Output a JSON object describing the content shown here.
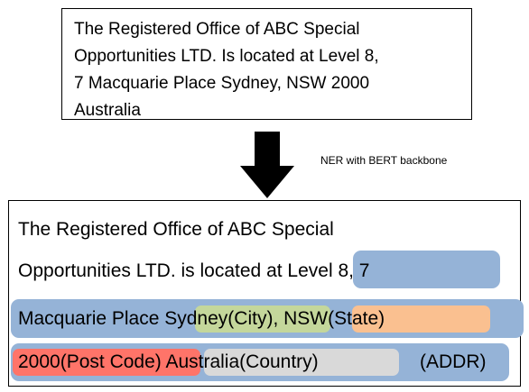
{
  "input": {
    "lines": [
      "The Registered Office of ABC Special",
      "Opportunities LTD. Is located at Level 8,",
      "7 Macquarie Place Sydney, NSW 2000",
      "Australia"
    ]
  },
  "arrow_label": "NER with BERT backbone",
  "output": {
    "line1": "The Registered Office of ABC Special",
    "line2_plain": "Opportunities LTD. is located at ",
    "line2_addr": "Level 8, 7",
    "line3_plain": "Macquarie Place ",
    "line3_city": "Sydney(City)",
    "line3_comma": ", ",
    "line3_state": "NSW(State)",
    "line4_postcode": "2000(Post Code)",
    "line4_space": " ",
    "line4_country": "Australia(Country)",
    "line4_addr": "(ADDR)"
  },
  "colors": {
    "addr": "#95b3d7",
    "city": "#c4d79b",
    "state": "#fac090",
    "postcode": "#ff7469",
    "country": "#d9d9d9"
  }
}
